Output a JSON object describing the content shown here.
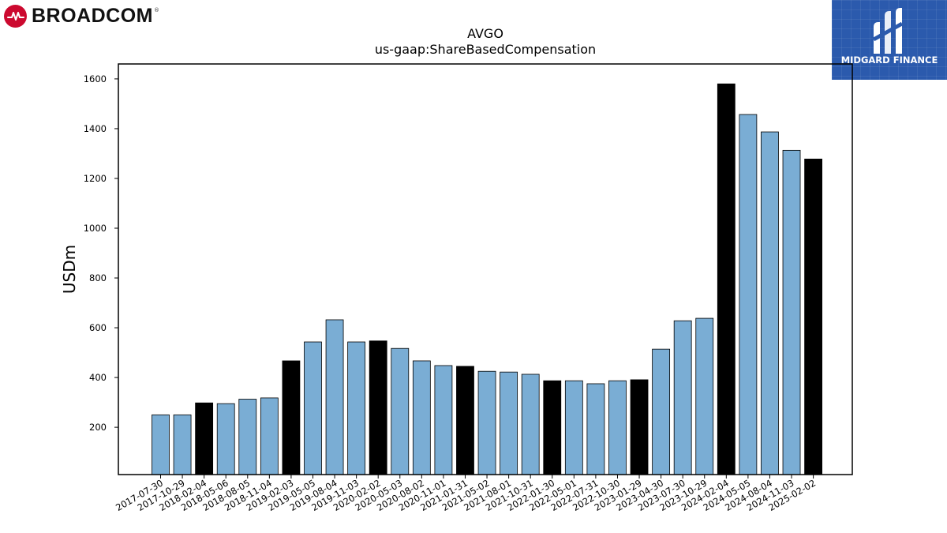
{
  "branding": {
    "company_logo_text": "BROADCOM",
    "company_logo_reg": "®",
    "publisher_logo_text": "MIDGARD FINANCE"
  },
  "colors": {
    "bar_regular": "#7aadd4",
    "bar_highlight": "#000000",
    "bar_edge": "#000000",
    "broadcom_red": "#cc092f",
    "midgard_blue": "#2b5aad"
  },
  "chart_data": {
    "type": "bar",
    "title": "AVGO",
    "subtitle": "us-gaap:ShareBasedCompensation",
    "xlabel": "",
    "ylabel": "USDm",
    "ylim": [
      10,
      1660
    ],
    "yticks": [
      200,
      400,
      600,
      800,
      1000,
      1200,
      1400,
      1600
    ],
    "grid": false,
    "categories": [
      "2017-07-30",
      "2017-10-29",
      "2018-02-04",
      "2018-05-06",
      "2018-08-05",
      "2018-11-04",
      "2019-02-03",
      "2019-05-05",
      "2019-08-04",
      "2019-11-03",
      "2020-02-02",
      "2020-05-03",
      "2020-08-02",
      "2020-11-01",
      "2021-01-31",
      "2021-05-02",
      "2021-08-01",
      "2021-10-31",
      "2022-01-30",
      "2022-05-01",
      "2022-07-31",
      "2022-10-30",
      "2023-01-29",
      "2023-04-30",
      "2023-07-30",
      "2023-10-29",
      "2024-02-04",
      "2024-05-05",
      "2024-08-04",
      "2024-11-03",
      "2025-02-02"
    ],
    "values": [
      250,
      250,
      298,
      295,
      313,
      318,
      467,
      543,
      632,
      543,
      547,
      517,
      467,
      448,
      445,
      425,
      422,
      413,
      387,
      387,
      375,
      387,
      391,
      514,
      628,
      638,
      1580,
      1457,
      1387,
      1313,
      1278
    ],
    "highlight": [
      false,
      false,
      true,
      false,
      false,
      false,
      true,
      false,
      false,
      false,
      true,
      false,
      false,
      false,
      true,
      false,
      false,
      false,
      true,
      false,
      false,
      false,
      true,
      false,
      false,
      false,
      true,
      false,
      false,
      false,
      true
    ]
  }
}
